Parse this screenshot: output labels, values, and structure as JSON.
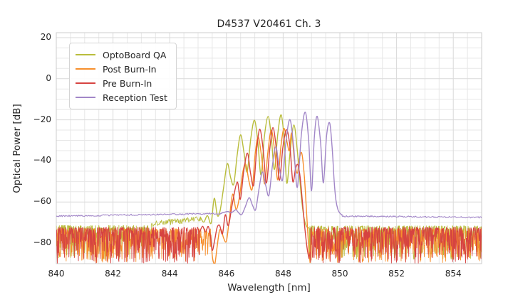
{
  "chart_data": {
    "type": "line",
    "title": "D4537 V20461 Ch. 3",
    "xlabel": "Wavelength [nm]",
    "ylabel": "Optical Power [dB]",
    "xlim": [
      840,
      855
    ],
    "ylim": [
      -90,
      22.4
    ],
    "xticks": [
      840,
      842,
      844,
      846,
      848,
      850,
      852,
      854
    ],
    "xtick_labels": [
      "840",
      "842",
      "844",
      "846",
      "848",
      "850",
      "852",
      "854"
    ],
    "yticks": [
      20,
      0,
      -20,
      -40,
      -60,
      -80
    ],
    "ytick_labels": [
      "20",
      "0",
      "−20",
      "−40",
      "−60",
      "−80"
    ],
    "minor_x_step": 0.5,
    "minor_y_step": 5,
    "grid": true,
    "legend_position": "upper left",
    "colors": {
      "grid_major": "#d9d9d9",
      "grid_minor": "#e7e7e7",
      "frame": "#cccccc"
    },
    "series": [
      {
        "name": "OptoBoard QA",
        "color": "#b9bd3c",
        "parts": [
          {
            "type": "noise",
            "from": 840,
            "to": 843.35,
            "top": -71.4,
            "depth": 17,
            "pow": 2,
            "seed": 101
          },
          {
            "type": "noise",
            "from": 843.35,
            "to": 845.08,
            "top_start": -69.2,
            "top_end": -66.9,
            "depth": 2.8,
            "pow": 1.4,
            "seed": 102,
            "step": 0.02
          },
          {
            "type": "curve",
            "points": [
              [
                845.08,
                -67.3
              ],
              [
                845.2,
                -69.8
              ],
              [
                845.33,
                -66.6
              ],
              [
                845.46,
                -70.3
              ],
              [
                845.57,
                -58.2
              ],
              [
                845.68,
                -66.6
              ],
              [
                845.78,
                -64
              ],
              [
                845.9,
                -53
              ],
              [
                846.03,
                -41.3
              ],
              [
                846.15,
                -48.2
              ],
              [
                846.26,
                -51.2
              ],
              [
                846.38,
                -37
              ],
              [
                846.5,
                -27.3
              ],
              [
                846.62,
                -36
              ],
              [
                846.73,
                -45.3
              ],
              [
                846.86,
                -29
              ],
              [
                846.99,
                -20.2
              ],
              [
                847.11,
                -31
              ],
              [
                847.22,
                -46.8
              ],
              [
                847.34,
                -28
              ],
              [
                847.47,
                -18.4
              ],
              [
                847.58,
                -28
              ],
              [
                847.69,
                -44.2
              ],
              [
                847.81,
                -27
              ],
              [
                847.93,
                -17.6
              ],
              [
                848.04,
                -30
              ],
              [
                848.13,
                -50.9
              ],
              [
                848.25,
                -35
              ],
              [
                848.38,
                -22.5
              ],
              [
                848.5,
                -35
              ],
              [
                848.58,
                -48
              ],
              [
                848.66,
                -60
              ],
              [
                848.74,
                -68
              ],
              [
                848.82,
                -71.8
              ],
              [
                848.9,
                -72.6
              ]
            ]
          },
          {
            "type": "noise",
            "from": 848.92,
            "to": 855,
            "top": -71.6,
            "depth": 16.5,
            "pow": 2,
            "seed": 103
          }
        ]
      },
      {
        "name": "Post Burn-In",
        "color": "#f78f2c",
        "parts": [
          {
            "type": "noise",
            "from": 840,
            "to": 845.45,
            "top": -73.0,
            "depth": 16.5,
            "pow": 2,
            "seed": 201
          },
          {
            "type": "curve",
            "points": [
              [
                845.45,
                -76
              ],
              [
                845.5,
                -86
              ],
              [
                845.55,
                -89.6
              ],
              [
                845.6,
                -89.6
              ],
              [
                845.67,
                -82
              ],
              [
                845.75,
                -74.2
              ],
              [
                845.82,
                -73.6
              ],
              [
                845.9,
                -77.5
              ],
              [
                846.0,
                -79
              ],
              [
                846.1,
                -68.5
              ],
              [
                846.22,
                -56.2
              ],
              [
                846.34,
                -63.6
              ],
              [
                846.46,
                -57.5
              ],
              [
                846.57,
                -46
              ],
              [
                846.68,
                -41.6
              ],
              [
                846.8,
                -50.2
              ],
              [
                846.91,
                -53.6
              ],
              [
                847.01,
                -37
              ],
              [
                847.12,
                -28.4
              ],
              [
                847.24,
                -38
              ],
              [
                847.35,
                -51.2
              ],
              [
                847.46,
                -36
              ],
              [
                847.58,
                -25.1
              ],
              [
                847.7,
                -35
              ],
              [
                847.81,
                -49.2
              ],
              [
                847.92,
                -33
              ],
              [
                848.03,
                -24.2
              ],
              [
                848.14,
                -31
              ],
              [
                848.22,
                -35
              ],
              [
                848.3,
                -26.4
              ],
              [
                848.4,
                -40
              ],
              [
                848.5,
                -46
              ],
              [
                848.58,
                -38.5
              ],
              [
                848.66,
                -36.4
              ],
              [
                848.75,
                -48
              ],
              [
                848.83,
                -66
              ],
              [
                848.9,
                -82
              ],
              [
                848.95,
                -89.5
              ]
            ]
          },
          {
            "type": "noise",
            "from": 848.98,
            "to": 855,
            "top": -73.0,
            "depth": 16.5,
            "pow": 2,
            "seed": 202
          }
        ]
      },
      {
        "name": "Pre Burn-In",
        "color": "#d64341",
        "parts": [
          {
            "type": "noise",
            "from": 840,
            "to": 845.06,
            "top": -72.3,
            "depth": 17.5,
            "pow": 2,
            "seed": 301
          },
          {
            "type": "curve",
            "points": [
              [
                845.06,
                -74.5
              ],
              [
                845.16,
                -71.8
              ],
              [
                845.26,
                -74.6
              ],
              [
                845.36,
                -71.9
              ],
              [
                845.44,
                -77
              ],
              [
                845.5,
                -83.5
              ],
              [
                845.58,
                -79
              ],
              [
                845.67,
                -72.5
              ],
              [
                845.76,
                -71.4
              ],
              [
                845.86,
                -75.5
              ],
              [
                845.96,
                -66.2
              ],
              [
                846.07,
                -71.5
              ],
              [
                846.2,
                -61.5
              ],
              [
                846.38,
                -50.3
              ],
              [
                846.49,
                -58.6
              ],
              [
                846.61,
                -45
              ],
              [
                846.74,
                -36.2
              ],
              [
                846.85,
                -46
              ],
              [
                846.96,
                -51.8
              ],
              [
                847.07,
                -34
              ],
              [
                847.18,
                -24.6
              ],
              [
                847.3,
                -35
              ],
              [
                847.41,
                -50.8
              ],
              [
                847.53,
                -34
              ],
              [
                847.64,
                -23.8
              ],
              [
                847.76,
                -34
              ],
              [
                847.87,
                -49.5
              ],
              [
                847.99,
                -33.5
              ],
              [
                848.12,
                -24.8
              ],
              [
                848.24,
                -33
              ],
              [
                848.34,
                -50
              ],
              [
                848.44,
                -43.5
              ],
              [
                848.52,
                -41.9
              ],
              [
                848.6,
                -48
              ],
              [
                848.68,
                -60
              ],
              [
                848.76,
                -72
              ],
              [
                848.84,
                -82
              ],
              [
                848.91,
                -87.5
              ]
            ]
          },
          {
            "type": "noise",
            "from": 848.95,
            "to": 855,
            "top": -72.3,
            "depth": 17.5,
            "pow": 2,
            "seed": 302
          }
        ]
      },
      {
        "name": "Reception Test",
        "color": "#a287c8",
        "parts": [
          {
            "type": "noise",
            "from": 840,
            "to": 845.78,
            "top_start": -66.5,
            "top_end": -65.2,
            "depth": 0.75,
            "pow": 1,
            "seed": 401,
            "step": 0.03,
            "lw": 1.1
          },
          {
            "type": "curve",
            "points": [
              [
                845.85,
                -65.3
              ],
              [
                845.95,
                -64.9
              ],
              [
                846.06,
                -64.6
              ],
              [
                846.16,
                -65.3
              ],
              [
                846.26,
                -64.4
              ],
              [
                846.34,
                -63.8
              ],
              [
                846.44,
                -65.4
              ],
              [
                846.54,
                -66.1
              ],
              [
                846.66,
                -62.5
              ],
              [
                846.8,
                -57.9
              ],
              [
                846.92,
                -61.6
              ],
              [
                847.03,
                -63.7
              ],
              [
                847.15,
                -53.5
              ],
              [
                847.27,
                -45.4
              ],
              [
                847.39,
                -52.2
              ],
              [
                847.5,
                -56.7
              ],
              [
                847.62,
                -42.5
              ],
              [
                847.74,
                -33.1
              ],
              [
                847.86,
                -42.8
              ],
              [
                847.98,
                -49.3
              ],
              [
                848.1,
                -30.5
              ],
              [
                848.24,
                -19.9
              ],
              [
                848.37,
                -33
              ],
              [
                848.5,
                -52.9
              ],
              [
                848.64,
                -27.5
              ],
              [
                848.78,
                -16.3
              ],
              [
                848.9,
                -30
              ],
              [
                849.0,
                -54.6
              ],
              [
                849.1,
                -28.5
              ],
              [
                849.2,
                -18.3
              ],
              [
                849.32,
                -31
              ],
              [
                849.42,
                -50.7
              ],
              [
                849.53,
                -28
              ],
              [
                849.64,
                -21.5
              ],
              [
                849.73,
                -34
              ],
              [
                849.8,
                -50
              ],
              [
                849.86,
                -59
              ],
              [
                849.93,
                -63.6
              ],
              [
                850.0,
                -65.4
              ],
              [
                850.08,
                -66.3
              ]
            ]
          },
          {
            "type": "noise",
            "from": 850.08,
            "to": 855,
            "top_start": -66.5,
            "top_end": -67.1,
            "depth": 0.75,
            "pow": 1,
            "seed": 402,
            "step": 0.03,
            "lw": 1.1
          }
        ]
      }
    ]
  }
}
